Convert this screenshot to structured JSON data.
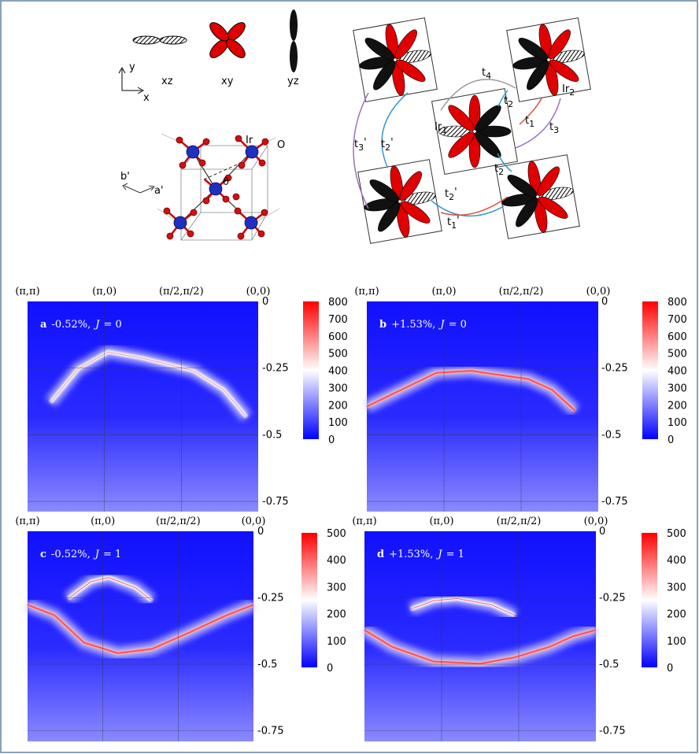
{
  "orbitals": {
    "labels": [
      "xz",
      "xy",
      "yz"
    ],
    "axis_x": "x",
    "axis_y": "y"
  },
  "structure": {
    "b_prime": "b'",
    "a_prime": "a'",
    "theta": "θ",
    "ir": "Ir",
    "o": "O"
  },
  "hopping": {
    "sites": [
      {
        "base": "Ir",
        "sub": "1"
      },
      {
        "base": "Ir",
        "sub": "2"
      }
    ],
    "hoppings": [
      {
        "base": "t",
        "sub": "4"
      },
      {
        "base": "t",
        "sub": "2"
      },
      {
        "base": "t",
        "sub": "1"
      },
      {
        "base": "t",
        "sub": "3"
      },
      {
        "base": "t",
        "sub": "3",
        "prime": "'"
      },
      {
        "base": "t",
        "sub": "2",
        "prime": "'"
      },
      {
        "base": "t",
        "sub": "2"
      },
      {
        "base": "t",
        "sub": "2",
        "prime": "'"
      },
      {
        "base": "t",
        "sub": "1",
        "prime": "'"
      }
    ]
  },
  "panels": [
    {
      "letter": "a",
      "strain": "-0.52%,",
      "coupling_symbol": "J",
      "coupling_value": "= 0",
      "kpoints": [
        "(π,π)",
        "(π,0)",
        "(π/2,π/2)",
        "(0,0)"
      ],
      "yticks": [
        "0",
        "-0.25",
        "-0.5",
        "-0.75"
      ],
      "colorbar_ticks": [
        "800",
        "700",
        "600",
        "500",
        "400",
        "300",
        "200",
        "100",
        "0"
      ]
    },
    {
      "letter": "b",
      "strain": "+1.53%,",
      "coupling_symbol": "J",
      "coupling_value": "= 0",
      "kpoints": [
        "(π,π)",
        "(π,0)",
        "(π/2,π/2)",
        "(0,0)"
      ],
      "yticks": [
        "0",
        "-0.25",
        "-0.5",
        "-0.75"
      ],
      "colorbar_ticks": [
        "800",
        "700",
        "600",
        "500",
        "400",
        "300",
        "200",
        "100",
        "0"
      ]
    },
    {
      "letter": "c",
      "strain": "-0.52%,",
      "coupling_symbol": "J",
      "coupling_value": "= 1",
      "kpoints": [
        "(π,π)",
        "(π,0)",
        "(π/2,π/2)",
        "(0,0)"
      ],
      "yticks": [
        "0",
        "-0.25",
        "-0.5",
        "-0.75"
      ],
      "colorbar_ticks": [
        "500",
        "400",
        "300",
        "200",
        "100",
        "0"
      ]
    },
    {
      "letter": "d",
      "strain": "+1.53%,",
      "coupling_symbol": "J",
      "coupling_value": "= 1",
      "kpoints": [
        "(π,π)",
        "(π,0)",
        "(π/2,π/2)",
        "(0,0)"
      ],
      "yticks": [
        "0",
        "-0.25",
        "-0.5",
        "-0.75"
      ],
      "colorbar_ticks": [
        "500",
        "400",
        "300",
        "200",
        "100",
        "0"
      ]
    }
  ]
}
